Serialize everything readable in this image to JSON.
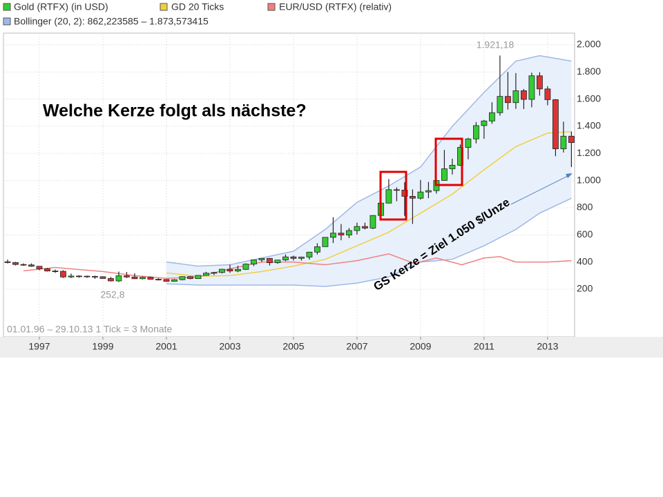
{
  "chart_data": {
    "type": "candlestick",
    "xlim": [
      1995.87,
      2013.85
    ],
    "xticks": [
      1997,
      1999,
      2001,
      2003,
      2005,
      2007,
      2009,
      2011,
      2013
    ],
    "ylim": [
      -151,
      2086
    ],
    "yticks": [
      200,
      400,
      600,
      800,
      {
        "value": 1000,
        "label": "1.000"
      },
      {
        "value": 1200,
        "label": "1.200"
      },
      {
        "value": 1400,
        "label": "1.400"
      },
      {
        "value": 1600,
        "label": "1.600"
      },
      {
        "value": 1800,
        "label": "1.800"
      },
      {
        "value": 2000,
        "label": "2.000"
      }
    ],
    "grid": true,
    "candles": {
      "name": "Gold (RTFX) (in USD)",
      "color_up": "#33cc33",
      "color_down": "#dd3333",
      "x": [
        1996,
        1996.25,
        1996.5,
        1996.75,
        1997,
        1997.25,
        1997.5,
        1997.75,
        1998,
        1998.25,
        1998.5,
        1998.75,
        1999,
        1999.25,
        1999.5,
        1999.75,
        2000,
        2000.25,
        2000.5,
        2000.75,
        2001,
        2001.25,
        2001.5,
        2001.75,
        2002,
        2002.25,
        2002.5,
        2002.75,
        2003,
        2003.25,
        2003.5,
        2003.75,
        2004,
        2004.25,
        2004.5,
        2004.75,
        2005,
        2005.25,
        2005.5,
        2005.75,
        2006,
        2006.25,
        2006.5,
        2006.75,
        2007,
        2007.25,
        2007.5,
        2007.75,
        2008,
        2008.25,
        2008.5,
        2008.75,
        2009,
        2009.25,
        2009.5,
        2009.75,
        2010,
        2010.25,
        2010.5,
        2010.75,
        2011,
        2011.25,
        2011.5,
        2011.75,
        2012,
        2012.25,
        2012.5,
        2012.75,
        2013,
        2013.25,
        2013.5,
        2013.75
      ],
      "open": [
        402,
        396,
        382,
        379,
        369,
        350,
        334,
        332,
        290,
        297,
        296,
        294,
        292,
        279,
        261,
        299,
        290,
        277,
        288,
        273,
        272,
        258,
        270,
        293,
        278,
        302,
        318,
        323,
        347,
        334,
        346,
        385,
        416,
        427,
        395,
        415,
        438,
        427,
        437,
        473,
        513,
        582,
        613,
        599,
        632,
        662,
        650,
        743,
        834,
        933,
        930,
        884,
        870,
        916,
        926,
        1001,
        1087,
        1113,
        1244,
        1307,
        1405,
        1439,
        1500,
        1620,
        1574,
        1662,
        1598,
        1772,
        1675,
        1596,
        1234,
        1327
      ],
      "high": [
        418,
        401,
        390,
        390,
        370,
        356,
        345,
        340,
        315,
        302,
        300,
        300,
        295,
        291,
        330,
        327,
        318,
        293,
        294,
        281,
        273,
        274,
        294,
        297,
        304,
        328,
        328,
        350,
        382,
        373,
        390,
        417,
        428,
        430,
        415,
        456,
        447,
        440,
        475,
        538,
        583,
        730,
        680,
        650,
        690,
        690,
        745,
        842,
        1011,
        950,
        988,
        935,
        1005,
        990,
        1018,
        1226,
        1161,
        1265,
        1315,
        1431,
        1447,
        1577,
        1921.18,
        1800,
        1792,
        1675,
        1795,
        1798,
        1695,
        1600,
        1434,
        1361
      ],
      "low": [
        390,
        375,
        372,
        365,
        340,
        330,
        320,
        283,
        282,
        285,
        284,
        276,
        278,
        257,
        252.8,
        282,
        275,
        272,
        270,
        264,
        255,
        256,
        265,
        273,
        277,
        301,
        304,
        316,
        320,
        325,
        342,
        370,
        400,
        375,
        387,
        406,
        411,
        411,
        418,
        456,
        513,
        540,
        560,
        576,
        602,
        640,
        642,
        722,
        832,
        848,
        740,
        681,
        860,
        870,
        904,
        998,
        1045,
        1108,
        1157,
        1274,
        1308,
        1418,
        1478,
        1523,
        1528,
        1527,
        1540,
        1626,
        1555,
        1180,
        1207,
        1100
      ],
      "close": [
        396,
        382,
        379,
        369,
        350,
        334,
        332,
        290,
        297,
        296,
        294,
        292,
        279,
        261,
        299,
        290,
        277,
        288,
        273,
        272,
        258,
        270,
        293,
        278,
        302,
        318,
        323,
        347,
        334,
        346,
        385,
        416,
        427,
        395,
        415,
        438,
        427,
        437,
        473,
        513,
        582,
        613,
        599,
        632,
        662,
        650,
        743,
        834,
        933,
        930,
        884,
        870,
        916,
        926,
        1001,
        1087,
        1113,
        1244,
        1307,
        1405,
        1439,
        1500,
        1620,
        1574,
        1662,
        1598,
        1772,
        1675,
        1596,
        1234,
        1327,
        1280
      ]
    },
    "series": [
      {
        "name": "GD 20 Ticks",
        "color": "#f0d040",
        "x": [
          2001,
          2002,
          2003,
          2004,
          2005,
          2006,
          2007,
          2008,
          2009,
          2010,
          2011,
          2012,
          2013,
          2013.75
        ],
        "values": [
          320,
          295,
          300,
          330,
          370,
          420,
          520,
          620,
          760,
          900,
          1080,
          1250,
          1350,
          1360
        ]
      },
      {
        "name": "EUR/USD (RTFX) (relativ)",
        "color": "#f08080",
        "x": [
          1996.5,
          1997.5,
          1998,
          1999,
          2000,
          2001,
          2002,
          2003,
          2004,
          2005,
          2006,
          2007,
          2008,
          2008.8,
          2009.5,
          2010.3,
          2011,
          2011.5,
          2012,
          2013,
          2013.75
        ],
        "values": [
          335,
          360,
          350,
          330,
          300,
          280,
          290,
          350,
          400,
          400,
          380,
          410,
          460,
          390,
          430,
          380,
          430,
          440,
          400,
          400,
          410
        ]
      }
    ],
    "bollinger": {
      "name": "Bollinger (20, 2): 862,223585 – 1.873,573415",
      "color": "#9fb8e6",
      "fill": "#e8f0fb",
      "x": [
        2001,
        2002,
        2003,
        2004,
        2005,
        2006,
        2007,
        2008,
        2009,
        2010,
        2011,
        2012,
        2012.75,
        2013.75
      ],
      "upper": [
        400,
        370,
        380,
        430,
        480,
        640,
        840,
        960,
        1100,
        1400,
        1650,
        1880,
        1920,
        1880
      ],
      "lower": [
        240,
        230,
        230,
        230,
        230,
        220,
        245,
        290,
        400,
        420,
        520,
        640,
        760,
        870
      ]
    },
    "annotations": {
      "high": "1.921,18",
      "low": "252,8",
      "range": "01.01.96 – 29.10.13   1 Tick = 3 Monate",
      "question": "Welche Kerze folgt als nächste?",
      "target": "GS Kerze = Ziel 1.050 $/Unze"
    }
  }
}
